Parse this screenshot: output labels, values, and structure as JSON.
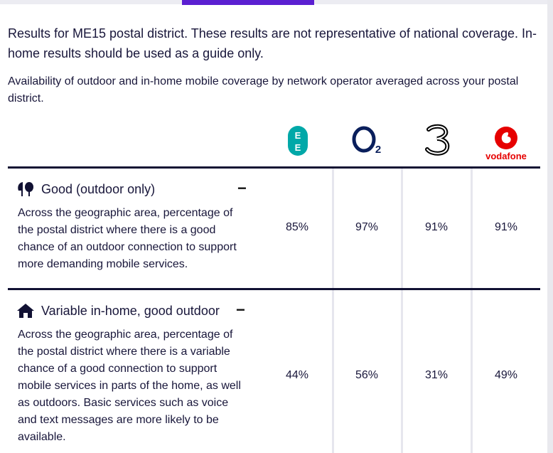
{
  "header": {
    "notice": "Results for ME15 postal district. These results are not representative of national coverage. In-home results should be used as a guide only.",
    "description": "Availability of outdoor and in-home mobile coverage by network operator averaged across your postal district."
  },
  "operators": [
    {
      "name": "EE",
      "icon": "ee-logo-icon",
      "logo_text": "EE",
      "color": "#00a8a8"
    },
    {
      "name": "O2",
      "icon": "o2-logo-icon",
      "logo_text": "O2",
      "color": "#0a1f5c"
    },
    {
      "name": "Three",
      "icon": "three-logo-icon",
      "logo_text": "3",
      "color": "#000000"
    },
    {
      "name": "Vodafone",
      "icon": "vodafone-logo-icon",
      "logo_text": "vodafone",
      "color": "#e60000"
    }
  ],
  "rows": [
    {
      "title": "Good (outdoor only)",
      "icon": "trees-icon",
      "collapse_symbol": "−",
      "description": "Across the geographic area, percentage of the postal district where there is a good chance of an outdoor connection to support more demanding mobile services.",
      "values": [
        "85%",
        "97%",
        "91%",
        "91%"
      ]
    },
    {
      "title": "Variable in-home, good outdoor",
      "icon": "house-icon",
      "collapse_symbol": "−",
      "description": "Across the geographic area, percentage of the postal district where there is a variable chance of a good connection to support mobile services in parts of the home, as well as outdoors. Basic services such as voice and text messages are more likely to be available.",
      "values": [
        "44%",
        "56%",
        "31%",
        "49%"
      ]
    }
  ],
  "colors": {
    "accent": "#5b1fd1",
    "rule": "#111133",
    "text": "#18163a"
  }
}
